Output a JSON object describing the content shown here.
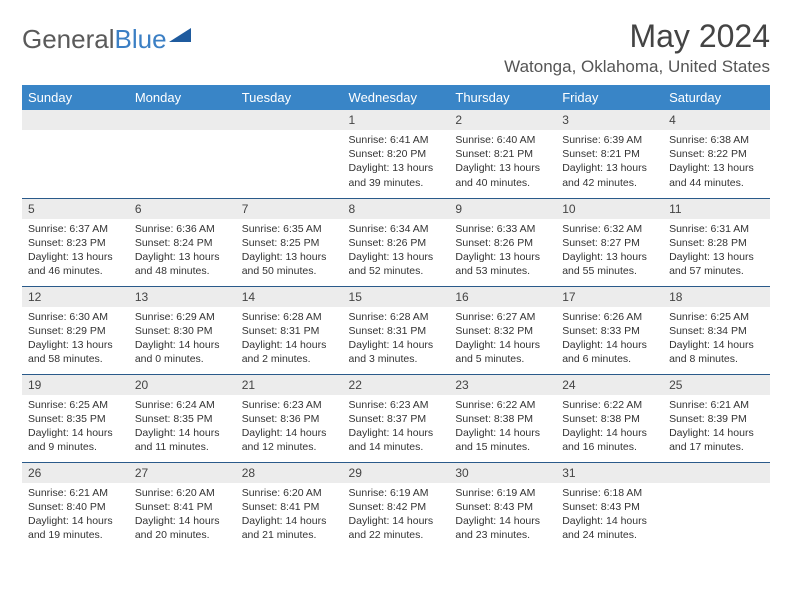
{
  "brand": {
    "part1": "General",
    "part2": "Blue"
  },
  "title": "May 2024",
  "location": "Watonga, Oklahoma, United States",
  "colors": {
    "header_bg": "#3985c7",
    "header_text": "#ffffff",
    "daynum_bg": "#ececec",
    "row_border": "#2a5a8a",
    "brand_gray": "#5a5a5a",
    "brand_blue": "#3b7fc4"
  },
  "weekdays": [
    "Sunday",
    "Monday",
    "Tuesday",
    "Wednesday",
    "Thursday",
    "Friday",
    "Saturday"
  ],
  "weeks": [
    [
      null,
      null,
      null,
      {
        "n": "1",
        "sr": "6:41 AM",
        "ss": "8:20 PM",
        "dl": "13 hours and 39 minutes."
      },
      {
        "n": "2",
        "sr": "6:40 AM",
        "ss": "8:21 PM",
        "dl": "13 hours and 40 minutes."
      },
      {
        "n": "3",
        "sr": "6:39 AM",
        "ss": "8:21 PM",
        "dl": "13 hours and 42 minutes."
      },
      {
        "n": "4",
        "sr": "6:38 AM",
        "ss": "8:22 PM",
        "dl": "13 hours and 44 minutes."
      }
    ],
    [
      {
        "n": "5",
        "sr": "6:37 AM",
        "ss": "8:23 PM",
        "dl": "13 hours and 46 minutes."
      },
      {
        "n": "6",
        "sr": "6:36 AM",
        "ss": "8:24 PM",
        "dl": "13 hours and 48 minutes."
      },
      {
        "n": "7",
        "sr": "6:35 AM",
        "ss": "8:25 PM",
        "dl": "13 hours and 50 minutes."
      },
      {
        "n": "8",
        "sr": "6:34 AM",
        "ss": "8:26 PM",
        "dl": "13 hours and 52 minutes."
      },
      {
        "n": "9",
        "sr": "6:33 AM",
        "ss": "8:26 PM",
        "dl": "13 hours and 53 minutes."
      },
      {
        "n": "10",
        "sr": "6:32 AM",
        "ss": "8:27 PM",
        "dl": "13 hours and 55 minutes."
      },
      {
        "n": "11",
        "sr": "6:31 AM",
        "ss": "8:28 PM",
        "dl": "13 hours and 57 minutes."
      }
    ],
    [
      {
        "n": "12",
        "sr": "6:30 AM",
        "ss": "8:29 PM",
        "dl": "13 hours and 58 minutes."
      },
      {
        "n": "13",
        "sr": "6:29 AM",
        "ss": "8:30 PM",
        "dl": "14 hours and 0 minutes."
      },
      {
        "n": "14",
        "sr": "6:28 AM",
        "ss": "8:31 PM",
        "dl": "14 hours and 2 minutes."
      },
      {
        "n": "15",
        "sr": "6:28 AM",
        "ss": "8:31 PM",
        "dl": "14 hours and 3 minutes."
      },
      {
        "n": "16",
        "sr": "6:27 AM",
        "ss": "8:32 PM",
        "dl": "14 hours and 5 minutes."
      },
      {
        "n": "17",
        "sr": "6:26 AM",
        "ss": "8:33 PM",
        "dl": "14 hours and 6 minutes."
      },
      {
        "n": "18",
        "sr": "6:25 AM",
        "ss": "8:34 PM",
        "dl": "14 hours and 8 minutes."
      }
    ],
    [
      {
        "n": "19",
        "sr": "6:25 AM",
        "ss": "8:35 PM",
        "dl": "14 hours and 9 minutes."
      },
      {
        "n": "20",
        "sr": "6:24 AM",
        "ss": "8:35 PM",
        "dl": "14 hours and 11 minutes."
      },
      {
        "n": "21",
        "sr": "6:23 AM",
        "ss": "8:36 PM",
        "dl": "14 hours and 12 minutes."
      },
      {
        "n": "22",
        "sr": "6:23 AM",
        "ss": "8:37 PM",
        "dl": "14 hours and 14 minutes."
      },
      {
        "n": "23",
        "sr": "6:22 AM",
        "ss": "8:38 PM",
        "dl": "14 hours and 15 minutes."
      },
      {
        "n": "24",
        "sr": "6:22 AM",
        "ss": "8:38 PM",
        "dl": "14 hours and 16 minutes."
      },
      {
        "n": "25",
        "sr": "6:21 AM",
        "ss": "8:39 PM",
        "dl": "14 hours and 17 minutes."
      }
    ],
    [
      {
        "n": "26",
        "sr": "6:21 AM",
        "ss": "8:40 PM",
        "dl": "14 hours and 19 minutes."
      },
      {
        "n": "27",
        "sr": "6:20 AM",
        "ss": "8:41 PM",
        "dl": "14 hours and 20 minutes."
      },
      {
        "n": "28",
        "sr": "6:20 AM",
        "ss": "8:41 PM",
        "dl": "14 hours and 21 minutes."
      },
      {
        "n": "29",
        "sr": "6:19 AM",
        "ss": "8:42 PM",
        "dl": "14 hours and 22 minutes."
      },
      {
        "n": "30",
        "sr": "6:19 AM",
        "ss": "8:43 PM",
        "dl": "14 hours and 23 minutes."
      },
      {
        "n": "31",
        "sr": "6:18 AM",
        "ss": "8:43 PM",
        "dl": "14 hours and 24 minutes."
      },
      null
    ]
  ],
  "labels": {
    "sunrise": "Sunrise:",
    "sunset": "Sunset:",
    "daylight": "Daylight:"
  }
}
